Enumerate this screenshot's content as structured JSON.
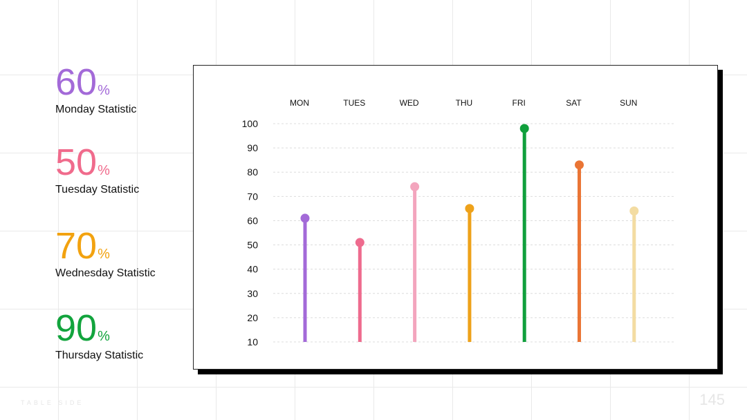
{
  "stats": [
    {
      "value": "60",
      "unit": "%",
      "label": "Monday Statistic",
      "color": "#a36ad8"
    },
    {
      "value": "50",
      "unit": "%",
      "label": "Tuesday Statistic",
      "color": "#f06b8c"
    },
    {
      "value": "70",
      "unit": "%",
      "label": "Wednesday Statistic",
      "color": "#f2a20f"
    },
    {
      "value": "90",
      "unit": "%",
      "label": "Thursday Statistic",
      "color": "#12a43d"
    }
  ],
  "footer": {
    "left_text": "TABLE SIDE",
    "page_number": "145"
  },
  "chart_data": {
    "type": "lollipop",
    "categories": [
      "MON",
      "TUES",
      "WED",
      "THU",
      "FRI",
      "SAT",
      "SUN"
    ],
    "values": [
      61,
      51,
      74,
      65,
      98,
      83,
      64
    ],
    "colors": [
      "#a36ad8",
      "#ee6b8e",
      "#f3a5bd",
      "#eea21a",
      "#109f3c",
      "#ea7535",
      "#f3dca2"
    ],
    "ylim": [
      10,
      100
    ],
    "yticks": [
      100,
      90,
      80,
      70,
      60,
      50,
      40,
      30,
      20,
      10
    ],
    "grid": true,
    "category_axis": "top"
  }
}
